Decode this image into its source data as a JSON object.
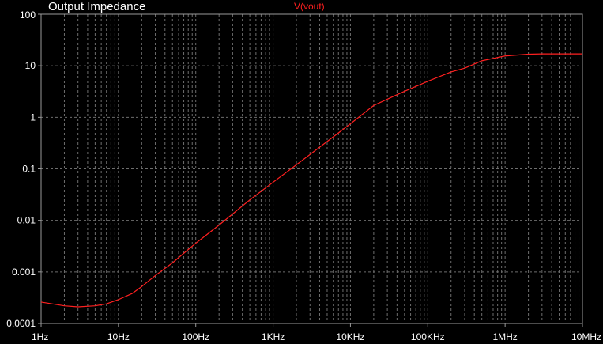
{
  "title": "Output Impedance",
  "chart_data": {
    "type": "line",
    "title": "Output Impedance",
    "xlabel": "",
    "ylabel": "",
    "xscale": "log",
    "yscale": "log",
    "xlim": [
      1,
      10000000
    ],
    "ylim": [
      0.0001,
      100
    ],
    "grid": true,
    "x_tick_values": [
      1,
      10,
      100,
      1000,
      10000,
      100000,
      1000000,
      10000000
    ],
    "x_tick_labels": [
      "1Hz",
      "10Hz",
      "100Hz",
      "1KHz",
      "10KHz",
      "100KHz",
      "1MHz",
      "10MHz"
    ],
    "y_tick_values": [
      0.0001,
      0.001,
      0.01,
      0.1,
      1,
      10,
      100
    ],
    "y_tick_labels": [
      "0.0001",
      "0.001",
      "0.01",
      "0.1",
      "1",
      "10",
      "100"
    ],
    "series": [
      {
        "name": "V(vout)",
        "color": "#ff2020",
        "x": [
          1,
          2,
          3,
          5,
          7,
          10,
          15,
          20,
          30,
          50,
          70,
          100,
          200,
          500,
          1000,
          2000,
          5000,
          10000,
          20000,
          50000,
          100000,
          200000,
          300000,
          500000,
          1000000,
          2000000,
          3000000,
          5000000,
          10000000
        ],
        "y": [
          0.00026,
          0.00022,
          0.00021,
          0.00022,
          0.00024,
          0.00029,
          0.00038,
          0.00052,
          0.00085,
          0.0015,
          0.0023,
          0.0036,
          0.0081,
          0.025,
          0.055,
          0.12,
          0.34,
          0.75,
          1.7,
          3.2,
          5.0,
          7.6,
          9.0,
          12.5,
          15.5,
          16.8,
          17.0,
          17.0,
          17.0
        ]
      }
    ]
  }
}
